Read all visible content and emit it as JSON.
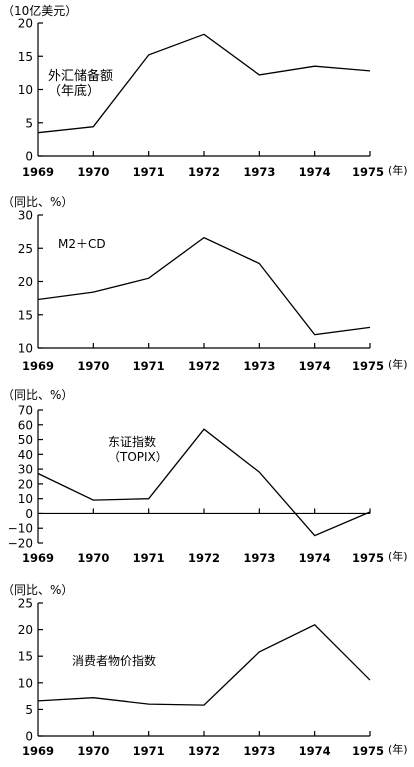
{
  "chart_data": [
    {
      "type": "line",
      "ylabel": "（10亿美元）",
      "annotation": [
        "外汇储备额",
        "（年底）"
      ],
      "x_unit": "(年)",
      "categories": [
        "1969",
        "1970",
        "1971",
        "1972",
        "1973",
        "1974",
        "1975"
      ],
      "yticks": [
        0,
        5,
        10,
        15,
        20
      ],
      "ylim": [
        0,
        20
      ],
      "values": [
        3.5,
        4.4,
        15.2,
        18.3,
        12.2,
        13.5,
        12.8
      ]
    },
    {
      "type": "line",
      "ylabel": "（同比、%）",
      "annotation": [
        "M2＋CD"
      ],
      "x_unit": "(年)",
      "categories": [
        "1969",
        "1970",
        "1971",
        "1972",
        "1973",
        "1974",
        "1975"
      ],
      "yticks": [
        10,
        15,
        20,
        25,
        30
      ],
      "ylim": [
        10,
        30
      ],
      "values": [
        17.3,
        18.4,
        20.5,
        26.6,
        22.7,
        12.0,
        13.1
      ]
    },
    {
      "type": "line",
      "ylabel": "（同比、%）",
      "annotation": [
        "东证指数",
        "（TOPIX）"
      ],
      "x_unit": "(年)",
      "categories": [
        "1969",
        "1970",
        "1971",
        "1972",
        "1973",
        "1974",
        "1975"
      ],
      "yticks": [
        -20,
        -10,
        0,
        10,
        20,
        30,
        40,
        50,
        60,
        70
      ],
      "ylim": [
        -20,
        70
      ],
      "values": [
        27,
        9,
        10,
        57,
        28,
        -15,
        1
      ]
    },
    {
      "type": "line",
      "ylabel": "（同比、%）",
      "annotation": [
        "消费者物价指数"
      ],
      "x_unit": "(年)",
      "categories": [
        "1969",
        "1970",
        "1971",
        "1972",
        "1973",
        "1974",
        "1975"
      ],
      "yticks": [
        0,
        5,
        10,
        15,
        20,
        25
      ],
      "ylim": [
        0,
        25
      ],
      "values": [
        6.6,
        7.2,
        6.0,
        5.8,
        15.8,
        20.9,
        10.5
      ]
    }
  ]
}
